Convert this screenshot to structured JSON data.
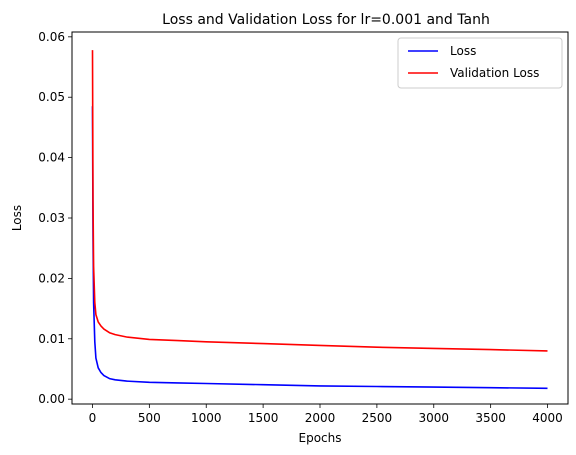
{
  "chart_data": {
    "type": "line",
    "title": "Loss and Validation Loss for lr=0.001 and Tanh",
    "xlabel": "Epochs",
    "ylabel": "Loss",
    "xlim": [
      -180,
      4180
    ],
    "ylim": [
      -0.0008,
      0.0608
    ],
    "xticks": [
      0,
      500,
      1000,
      1500,
      2000,
      2500,
      3000,
      3500,
      4000
    ],
    "yticks": [
      0.0,
      0.01,
      0.02,
      0.03,
      0.04,
      0.05,
      0.06
    ],
    "ytick_labels": [
      "0.00",
      "0.01",
      "0.02",
      "0.03",
      "0.04",
      "0.05",
      "0.06"
    ],
    "grid": false,
    "legend_position": "top-right",
    "series": [
      {
        "name": "Loss",
        "color": "#0000ff",
        "x": [
          0,
          5,
          10,
          20,
          30,
          50,
          75,
          100,
          150,
          200,
          300,
          500,
          750,
          1000,
          1500,
          2000,
          2500,
          3000,
          3500,
          4000
        ],
        "y": [
          0.0485,
          0.027,
          0.016,
          0.0095,
          0.0068,
          0.0052,
          0.0044,
          0.0039,
          0.0034,
          0.0032,
          0.003,
          0.0028,
          0.0027,
          0.0026,
          0.0024,
          0.0022,
          0.0021,
          0.002,
          0.0019,
          0.0018
        ]
      },
      {
        "name": "Validation Loss",
        "color": "#ff0000",
        "x": [
          0,
          5,
          10,
          20,
          30,
          50,
          75,
          100,
          150,
          200,
          300,
          500,
          750,
          1000,
          1500,
          2000,
          2500,
          3000,
          3500,
          4000
        ],
        "y": [
          0.0578,
          0.033,
          0.022,
          0.016,
          0.014,
          0.0128,
          0.0121,
          0.0116,
          0.011,
          0.0107,
          0.0103,
          0.0099,
          0.0097,
          0.0095,
          0.0092,
          0.0089,
          0.0086,
          0.0084,
          0.0082,
          0.008
        ]
      }
    ]
  }
}
